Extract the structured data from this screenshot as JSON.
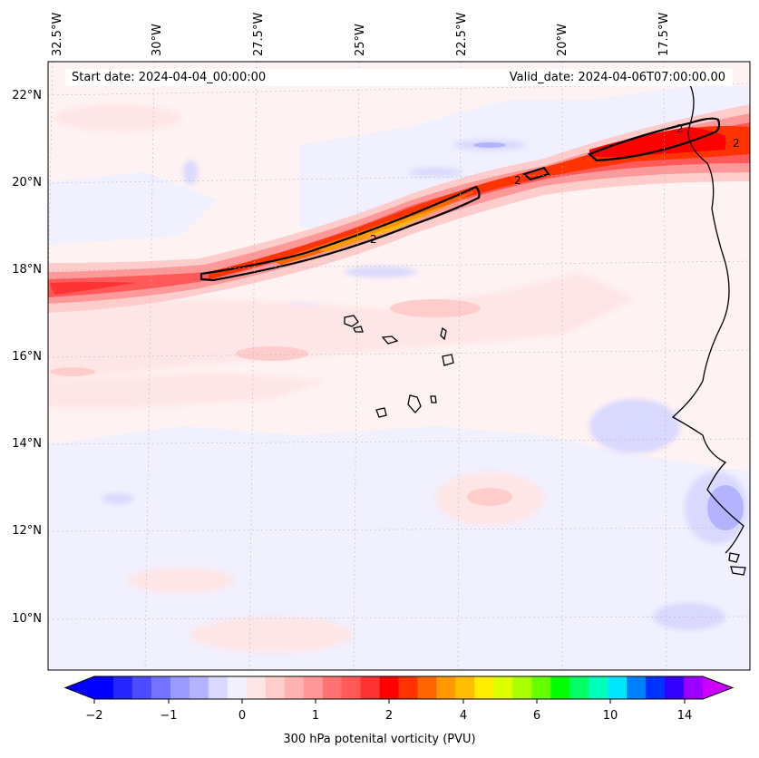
{
  "map": {
    "start_date": "Start date: 2024-04-04_00:00:00",
    "valid_date": "Valid_date: 2024-04-06T07:00:00.00",
    "longitude_labels": [
      "32.5°W",
      "30°W",
      "27.5°W",
      "25°W",
      "22.5°W",
      "20°W",
      "17.5°W"
    ],
    "latitude_labels": [
      "22°N",
      "20°N",
      "18°N",
      "16°N",
      "14°N",
      "12°N",
      "10°N"
    ],
    "contour_labels": [
      "2",
      "2",
      "2",
      "2"
    ]
  },
  "colorbar": {
    "tick_labels": [
      "−2",
      "−1",
      "0",
      "1",
      "2",
      "4",
      "6",
      "10",
      "14"
    ],
    "label": "300 hPa potenital vorticity (PVU)",
    "colors": [
      "#0000ff",
      "#2626ff",
      "#4d4dff",
      "#7373ff",
      "#9999ff",
      "#b3b3ff",
      "#d9d9ff",
      "#f0f0ff",
      "#ffe6e6",
      "#ffcccc",
      "#ffb3b3",
      "#ff9999",
      "#ff7373",
      "#ff5959",
      "#ff3333",
      "#ff0000",
      "#ff3300",
      "#ff6600",
      "#ff9900",
      "#ffbf00",
      "#ffee00",
      "#ddff00",
      "#aaff00",
      "#66ff00",
      "#00ff00",
      "#00ff66",
      "#00ffbb",
      "#00e6ff",
      "#0080ff",
      "#0033ff",
      "#3300ff",
      "#9900ff"
    ],
    "under_color": "#0000ff",
    "over_color": "#cc00ff"
  }
}
